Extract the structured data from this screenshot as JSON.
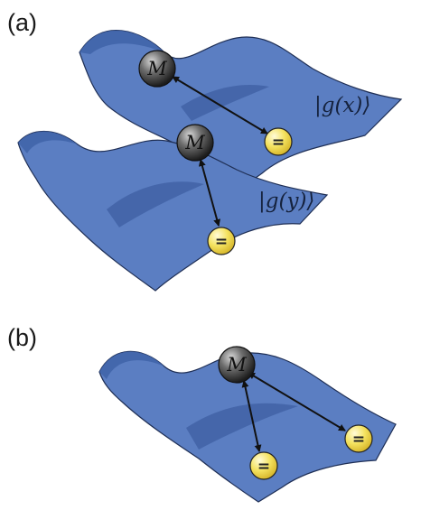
{
  "panels": [
    {
      "label": "(a)"
    },
    {
      "label": "(b)"
    }
  ],
  "states": {
    "gx": "|g(x)⟩",
    "gy": "|g(y)⟩"
  },
  "nodes": {
    "memory_label": "M",
    "equal_symbol": "="
  },
  "colors": {
    "surface": "#5b7ec2",
    "surface_stroke": "#1f2f55",
    "memory_node": "#4a4a4a",
    "equal_node": "#f3df5a",
    "arrow": "#111111"
  }
}
